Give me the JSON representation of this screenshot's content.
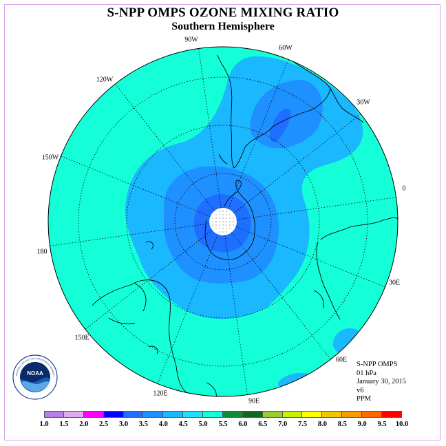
{
  "title": "S-NPP OMPS OZONE MIXING RATIO",
  "subtitle": "Southern Hemisphere",
  "longitude_labels": [
    "90W",
    "60W",
    "30W",
    "0",
    "30E",
    "60E",
    "90E",
    "120E",
    "150E",
    "180",
    "150W",
    "120W"
  ],
  "info": {
    "product": "S-NPP OMPS",
    "level": "01 hPa",
    "date": "January 30, 2015",
    "version": "v6",
    "units": "PPM"
  },
  "colorbar": {
    "ticks": [
      "1.0",
      "1.5",
      "2.0",
      "2.5",
      "3.0",
      "3.5",
      "4.0",
      "4.5",
      "5.0",
      "5.5",
      "6.0",
      "6.5",
      "7.0",
      "7.5",
      "8.0",
      "8.5",
      "9.0",
      "9.5",
      "10.0"
    ],
    "colors": [
      "#b87fe6",
      "#dfaaf0",
      "#ff00ff",
      "#0000ff",
      "#1e6fff",
      "#1e90ff",
      "#1ab8ff",
      "#1ee0ff",
      "#12ffd9",
      "#0f8b3c",
      "#0b6b1f",
      "#9acd32",
      "#c8f000",
      "#ffff00",
      "#f5c400",
      "#f59a00",
      "#ff6a00",
      "#ff0000",
      "#8b4a2b"
    ]
  },
  "map": {
    "background_color": "#14ffd8",
    "contour_levels_ppm": [
      4.0,
      3.5,
      3.0
    ],
    "contour_colors": [
      "#1ab8ff",
      "#1e90ff",
      "#1e6fff"
    ],
    "pole_mask_color": "#ffffff"
  },
  "logo": {
    "text": "NOAA",
    "ring_text": "NATIONAL OCEANIC AND ATMOSPHERIC ADMINISTRATION · U.S. DEPARTMENT OF COMMERCE"
  }
}
